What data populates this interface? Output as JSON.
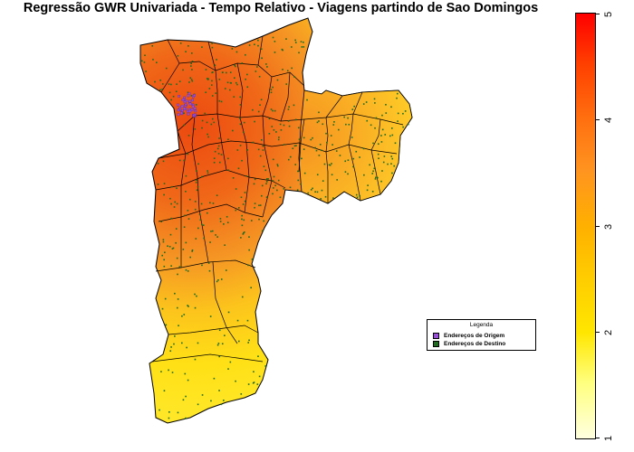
{
  "title": "Regressão GWR Univariada - Tempo Relativo - Viagens partindo de Sao Domingos",
  "legend": {
    "title": "Legenda",
    "items": [
      {
        "label": "Endereços de Origem",
        "color": "#9a4fd8"
      },
      {
        "label": "Endereços de Destino",
        "color": "#1f6b1f"
      }
    ]
  },
  "colorbar": {
    "min": 1,
    "max": 5,
    "ticks": [
      "1",
      "2",
      "3",
      "4",
      "5"
    ],
    "colors": [
      "#ffffe0",
      "#ffff80",
      "#ffe600",
      "#ffcc00",
      "#ffb000",
      "#ff9420",
      "#ff7010",
      "#ff4000",
      "#ff0000"
    ]
  },
  "colors": {
    "boundary": "#000000",
    "high_fill": "#f05a10",
    "mid_fill": "#f59a20",
    "low_fill": "#ffd020"
  }
}
